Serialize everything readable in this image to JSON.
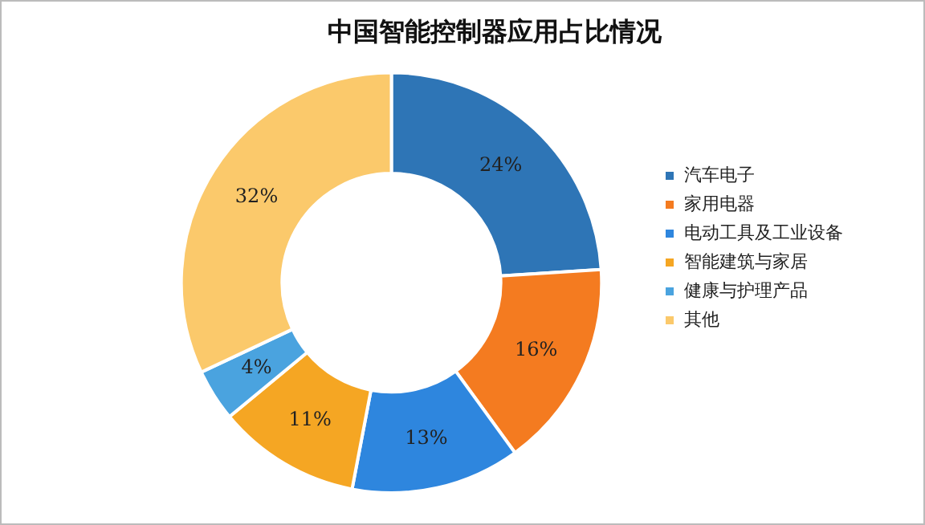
{
  "chart_data": {
    "type": "donut",
    "title": "中国智能控制器应用占比情况",
    "categories": [
      "汽车电子",
      "家用电器",
      "电动工具及工业设备",
      "智能建筑与家居",
      "健康与护理产品",
      "其他"
    ],
    "values": [
      24,
      16,
      13,
      11,
      4,
      32
    ],
    "value_labels": [
      "24%",
      "16%",
      "13%",
      "11%",
      "4%",
      "32%"
    ],
    "colors": [
      "#2e75b6",
      "#f47b20",
      "#2e86de",
      "#f5a623",
      "#4aa3df",
      "#fbc96b"
    ],
    "legend": "right"
  }
}
